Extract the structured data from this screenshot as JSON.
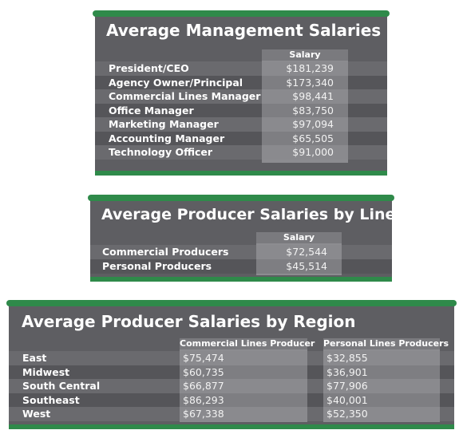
{
  "colors": {
    "accent": "#2f8a4a",
    "panel": "#5e5e62",
    "column": "#8c8c90"
  },
  "chart_data": [
    {
      "type": "table",
      "title": "Average Management Salaries",
      "columns": [
        "Salary"
      ],
      "rows": [
        {
          "label": "President/CEO",
          "values": [
            "$181,239"
          ]
        },
        {
          "label": "Agency Owner/Principal",
          "values": [
            "$173,340"
          ]
        },
        {
          "label": "Commercial Lines Manager",
          "values": [
            "$98,441"
          ]
        },
        {
          "label": "Office Manager",
          "values": [
            "$83,750"
          ]
        },
        {
          "label": "Marketing Manager",
          "values": [
            "$97,094"
          ]
        },
        {
          "label": "Accounting Manager",
          "values": [
            "$65,505"
          ]
        },
        {
          "label": "Technology Officer",
          "values": [
            "$91,000"
          ]
        }
      ]
    },
    {
      "type": "table",
      "title": "Average Producer Salaries by Line",
      "columns": [
        "Salary"
      ],
      "rows": [
        {
          "label": "Commercial Producers",
          "values": [
            "$72,544"
          ]
        },
        {
          "label": "Personal Producers",
          "values": [
            "$45,514"
          ]
        }
      ]
    },
    {
      "type": "table",
      "title": "Average Producer Salaries by Region",
      "columns": [
        "Commercial Lines Producer",
        "Personal Lines Producers"
      ],
      "rows": [
        {
          "label": "East",
          "values": [
            "$75,474",
            "$32,855"
          ]
        },
        {
          "label": "Midwest",
          "values": [
            "$60,735",
            "$36,901"
          ]
        },
        {
          "label": "South Central",
          "values": [
            "$66,877",
            "$77,906"
          ]
        },
        {
          "label": "Southeast",
          "values": [
            "$86,293",
            "$40,001"
          ]
        },
        {
          "label": "West",
          "values": [
            "$67,338",
            "$52,350"
          ]
        }
      ]
    }
  ]
}
